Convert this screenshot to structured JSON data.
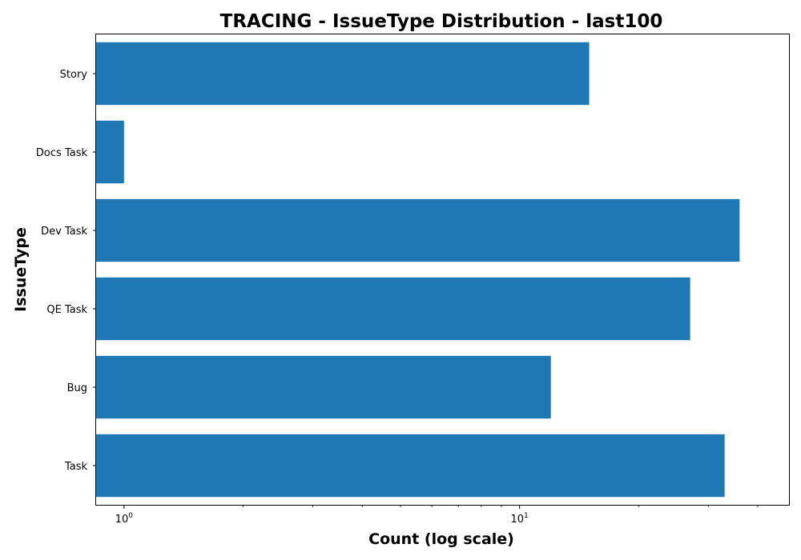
{
  "chart_data": {
    "type": "bar",
    "orientation": "horizontal",
    "title": "TRACING - IssueType Distribution - last100",
    "xlabel": "Count (log scale)",
    "ylabel": "IssueType",
    "x_scale": "log",
    "xlim": [
      0.85,
      48
    ],
    "x_ticks": [
      {
        "value": 1,
        "base": "10",
        "exponent": "0"
      },
      {
        "value": 10,
        "base": "10",
        "exponent": "1"
      }
    ],
    "categories": [
      "Task",
      "Bug",
      "QE Task",
      "Dev Task",
      "Docs Task",
      "Story"
    ],
    "values": [
      33,
      12,
      27,
      36,
      1,
      15
    ],
    "bar_color": "#1f77b4",
    "grid": false,
    "legend": "none"
  }
}
